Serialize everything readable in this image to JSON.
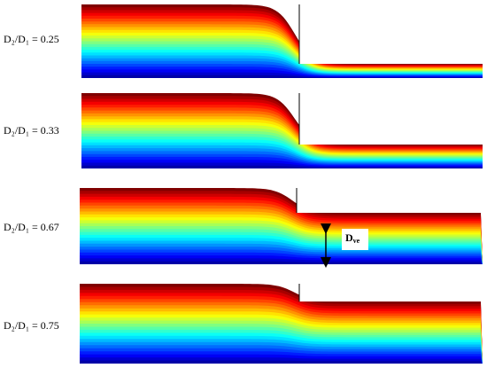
{
  "panels": [
    {
      "label": "D₂/D₁ = 0.25"
    },
    {
      "label": "D₂/D₁ = 0.33"
    },
    {
      "label": "D₂/D₁ = 0.67"
    },
    {
      "label": "D₂/D₁ = 0.75"
    }
  ],
  "annotation": {
    "main": "D",
    "sub": "ve"
  }
}
